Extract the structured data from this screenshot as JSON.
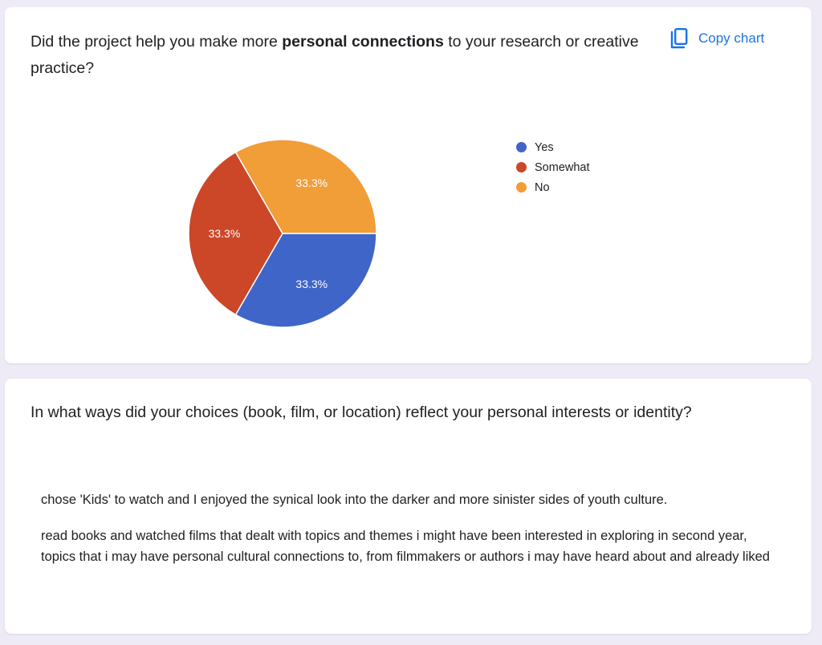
{
  "card1": {
    "question_pre": "Did the project help you make more ",
    "question_bold": "personal connections",
    "question_post": " to your research or creative practice?",
    "copy_label": "Copy chart",
    "copy_icon": "copy-icon",
    "legend_colors": [
      "#3f65c8",
      "#cc4628",
      "#f19d38"
    ]
  },
  "chart_data": {
    "type": "pie",
    "categories": [
      "Yes",
      "Somewhat",
      "No"
    ],
    "values": [
      33.3,
      33.3,
      33.3
    ],
    "labels": [
      "33.3%",
      "33.3%",
      "33.3%"
    ],
    "colors": [
      "#3f65c8",
      "#cc4628",
      "#f19d38"
    ],
    "legend_position": "right",
    "title": ""
  },
  "card2": {
    "question": "In what ways did your choices (book, film, or location) reflect your personal interests or identity?",
    "responses": [
      "chose 'Kids' to watch and I enjoyed the synical look into the darker and more sinister sides of youth culture.",
      "read books and watched films that dealt with topics and themes i might have been interested in exploring in second year, topics that i may have personal cultural connections to, from filmmakers or authors i may have heard about and already liked"
    ]
  }
}
